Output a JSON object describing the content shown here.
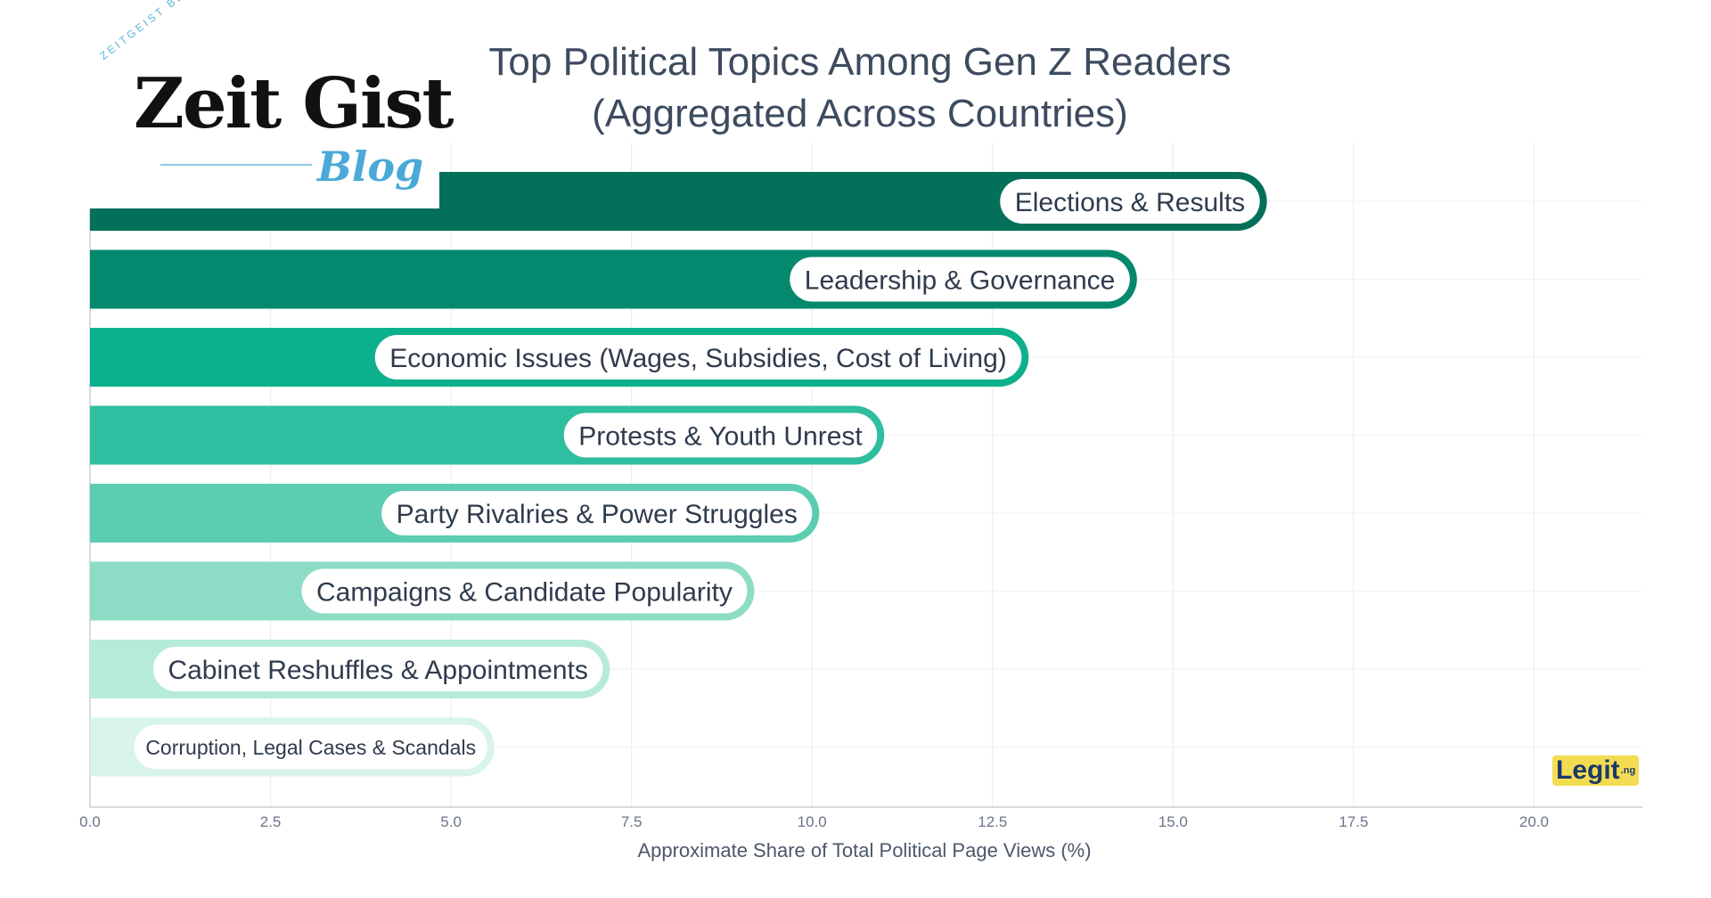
{
  "chart_data": {
    "type": "bar",
    "orientation": "horizontal",
    "title_lines": [
      "Top Political Topics Among Gen Z Readers",
      "(Aggregated Across Countries)"
    ],
    "xlabel": "Approximate Share of Total Political Page Views (%)",
    "ylabel": "",
    "xlim": [
      0,
      21.5
    ],
    "x_ticks": [
      "0.0",
      "2.5",
      "5.0",
      "7.5",
      "10.0",
      "12.5",
      "15.0",
      "17.5",
      "20.0"
    ],
    "grid": true,
    "categories": [
      "Elections & Results",
      "Leadership & Governance",
      "Economic Issues (Wages, Subsidies, Cost of Living)",
      "Protests & Youth Unrest",
      "Party Rivalries & Power Struggles",
      "Campaigns & Candidate Popularity",
      "Cabinet Reshuffles & Appointments",
      "Corruption, Legal Cases & Scandals"
    ],
    "values": [
      16.3,
      14.5,
      13.0,
      11.0,
      10.1,
      9.2,
      7.2,
      5.6
    ],
    "colors": [
      "#04705a",
      "#05896e",
      "#0db08c",
      "#2fbe9f",
      "#5ccdb1",
      "#8ddcc6",
      "#b6eadb",
      "#d8f4ec"
    ]
  },
  "logos": {
    "blog_arc": "ZEITGEIST BLOG",
    "blog_main": "Zeit Gist",
    "blog_sub": "Blog",
    "publisher": "Legit",
    "publisher_suffix": ".ng"
  }
}
